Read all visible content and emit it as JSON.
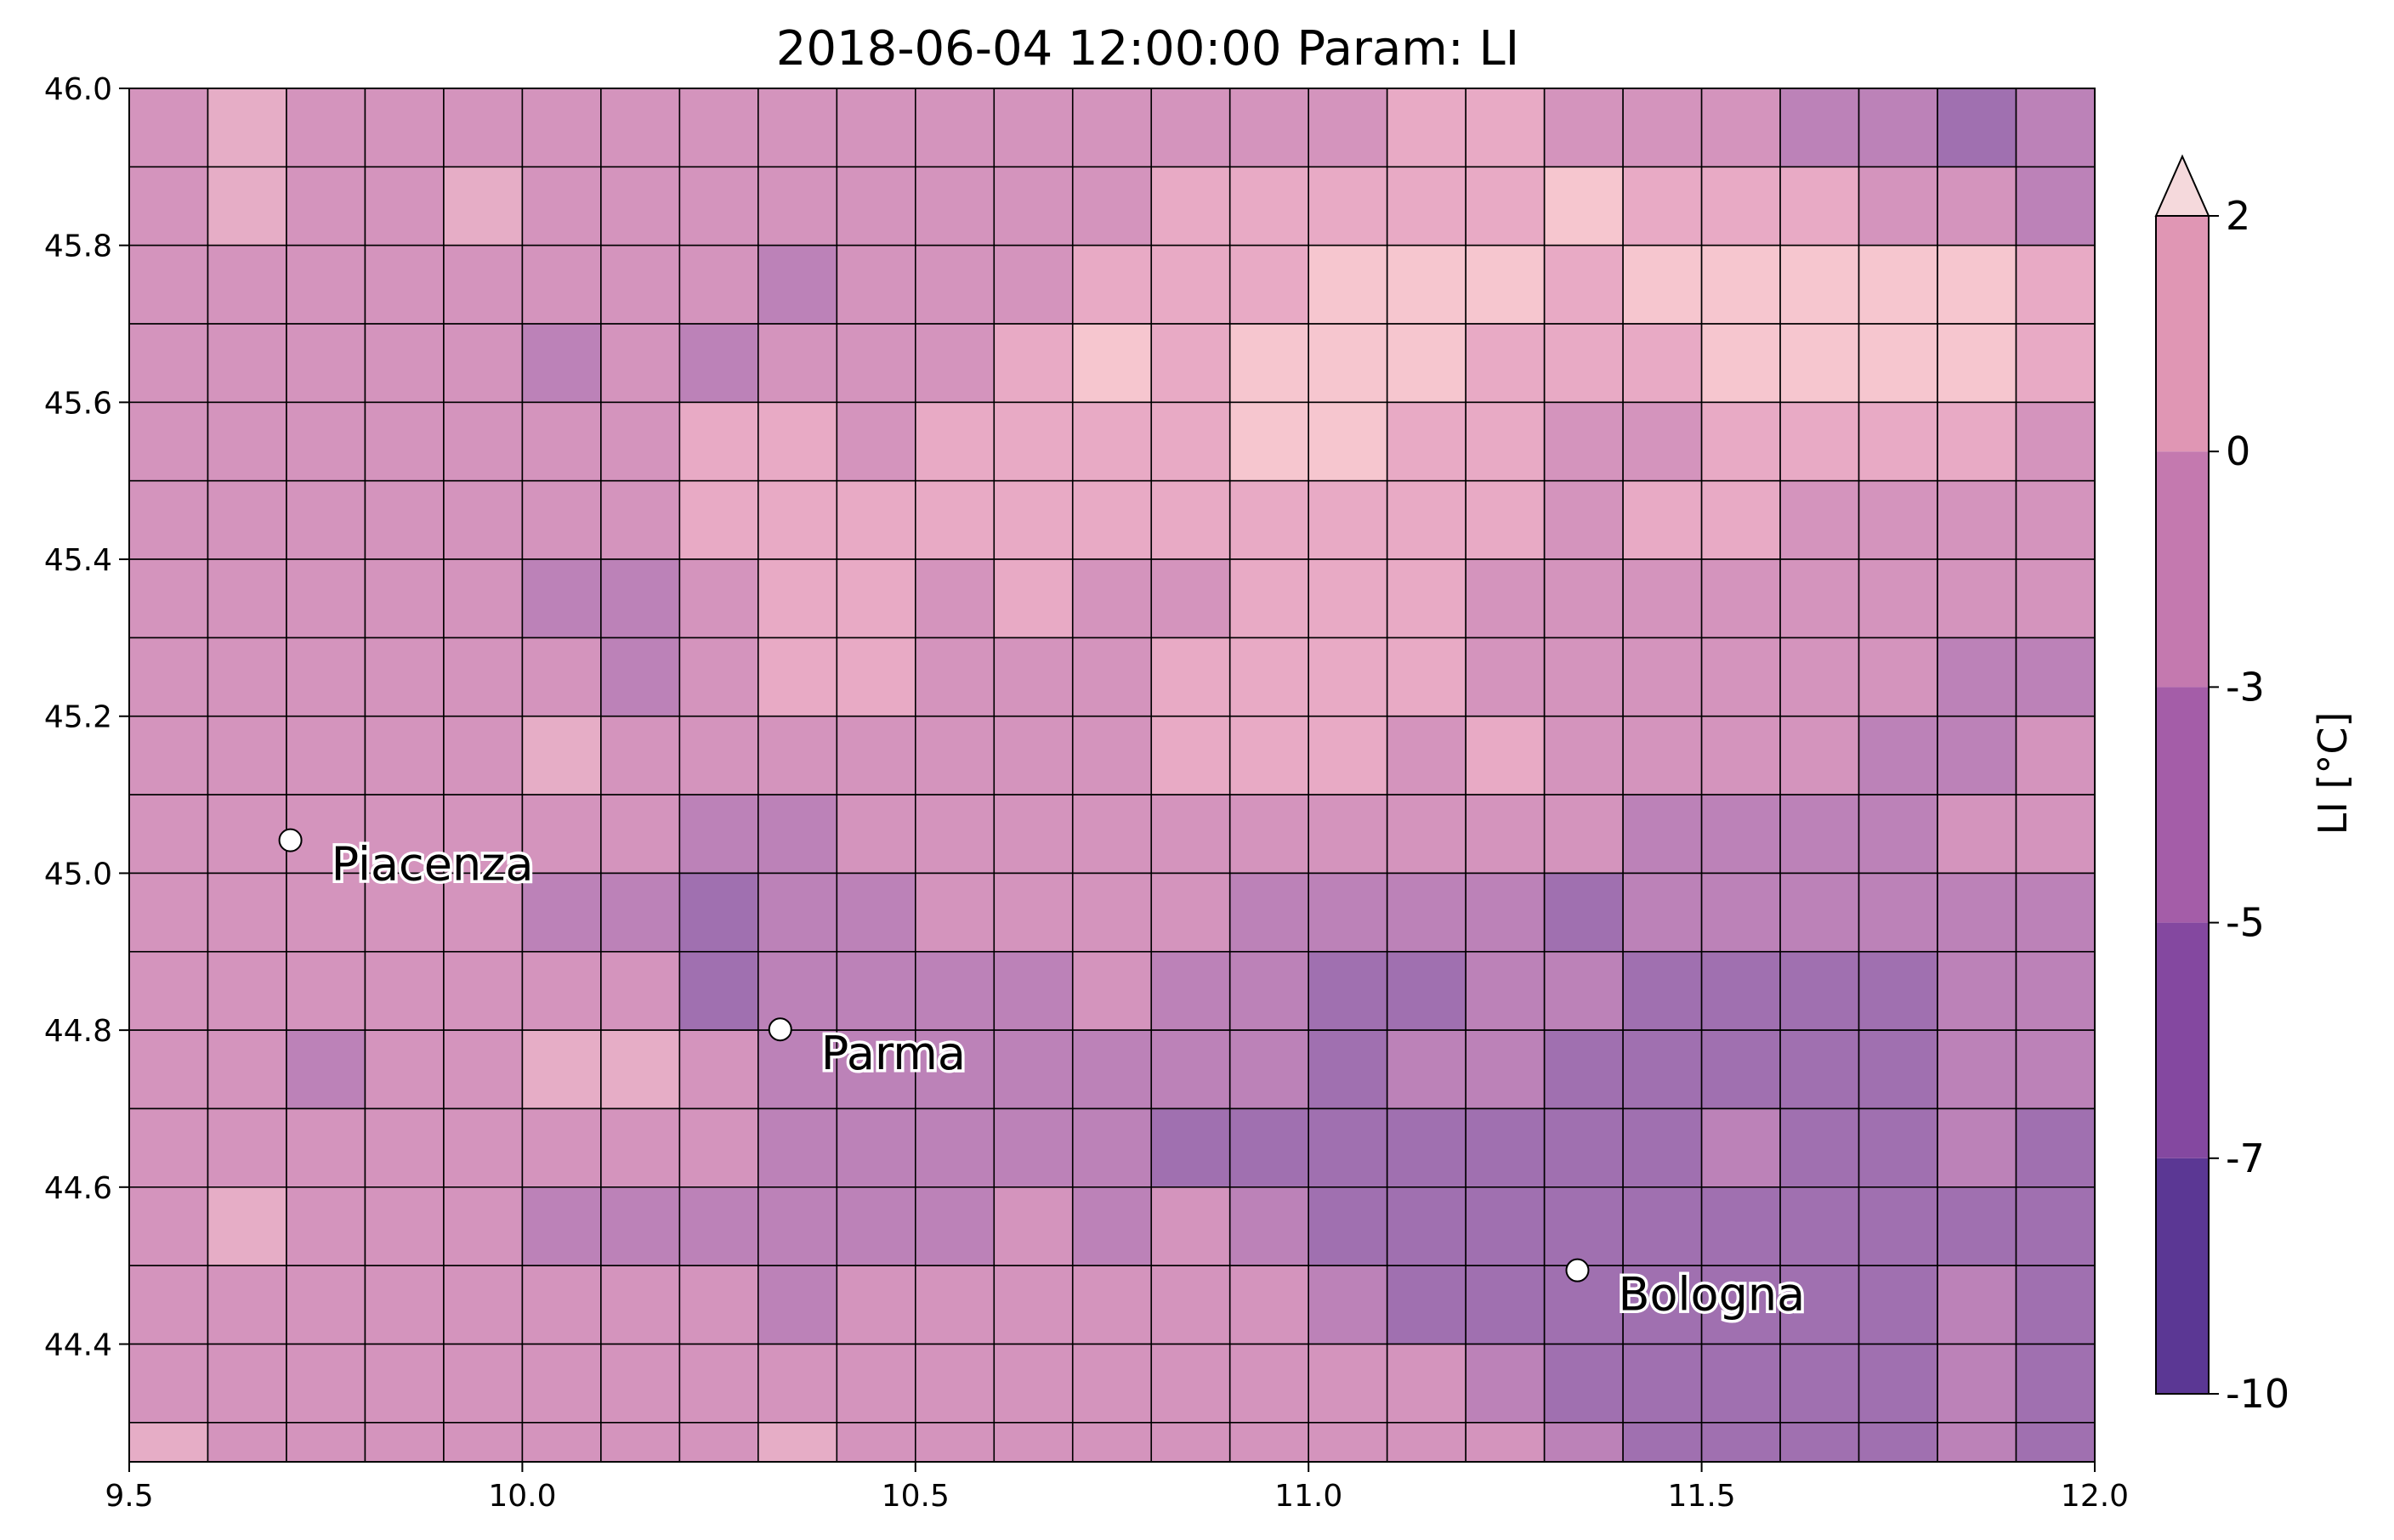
{
  "chart_data": {
    "type": "heatmap",
    "title": "2018-06-04 12:00:00 Param: LI",
    "xlim": [
      9.5,
      12.0
    ],
    "ylim": [
      44.25,
      46.0
    ],
    "x_ticks": [
      9.5,
      10.0,
      10.5,
      11.0,
      11.5,
      12.0
    ],
    "x_tick_labels": [
      "9.5",
      "10.0",
      "10.5",
      "11.0",
      "11.5",
      "12.0"
    ],
    "y_ticks": [
      44.4,
      44.6,
      44.8,
      45.0,
      45.2,
      45.4,
      45.6,
      45.8,
      46.0
    ],
    "y_tick_labels": [
      "44.4",
      "44.6",
      "44.8",
      "45.0",
      "45.2",
      "45.4",
      "45.6",
      "45.8",
      "46.0"
    ],
    "grid_x_edges": [
      9.5,
      9.6,
      9.7,
      9.8,
      9.9,
      10.0,
      10.1,
      10.2,
      10.3,
      10.4,
      10.5,
      10.6,
      10.7,
      10.8,
      10.9,
      11.0,
      11.1,
      11.2,
      11.3,
      11.4,
      11.5,
      11.6,
      11.7,
      11.8,
      11.9,
      12.0
    ],
    "grid_y_edges_top_to_bottom": [
      46.0,
      45.9,
      45.8,
      45.7,
      45.6,
      45.5,
      45.4,
      45.3,
      45.2,
      45.1,
      45.0,
      44.9,
      44.8,
      44.7,
      44.6,
      44.5,
      44.4,
      44.3,
      44.25
    ],
    "value_units": "LI [°C], colour class index (0 = -10..-7, 1 = -7..-5, 2 = -5..-3, 3 = -3..0, 4 = 0..2, 5 = >2)",
    "rows_top_to_bottom": [
      [
        2.6,
        3.4,
        2.6,
        2.6,
        2.6,
        2.6,
        2.6,
        2.6,
        2.6,
        2.6,
        2.6,
        2.6,
        2.6,
        2.6,
        2.6,
        2.6,
        3.0,
        3.0,
        2.6,
        2.6,
        2.6,
        2.0,
        2.0,
        1.4,
        2.0
      ],
      [
        2.6,
        3.4,
        2.6,
        2.6,
        3.4,
        2.6,
        2.6,
        2.6,
        2.6,
        2.6,
        2.6,
        2.6,
        2.6,
        3.0,
        3.0,
        3.0,
        3.0,
        3.0,
        4.5,
        3.0,
        3.0,
        3.0,
        2.6,
        2.6,
        2.0
      ],
      [
        2.6,
        2.6,
        2.6,
        2.6,
        2.6,
        2.6,
        2.6,
        2.6,
        2.0,
        2.6,
        2.6,
        2.6,
        3.0,
        3.0,
        3.0,
        4.5,
        4.5,
        4.5,
        3.0,
        4.5,
        4.5,
        4.5,
        4.5,
        4.5,
        3.0
      ],
      [
        2.6,
        2.6,
        2.6,
        2.6,
        2.6,
        2.0,
        2.6,
        2.0,
        2.6,
        2.6,
        2.6,
        3.0,
        4.5,
        3.0,
        4.5,
        4.5,
        4.5,
        3.0,
        3.0,
        3.0,
        4.5,
        4.5,
        4.5,
        4.5,
        3.0
      ],
      [
        2.6,
        2.6,
        2.6,
        2.6,
        2.6,
        2.6,
        2.6,
        3.0,
        3.0,
        2.6,
        3.0,
        3.0,
        3.0,
        3.0,
        4.5,
        4.5,
        3.0,
        3.0,
        2.6,
        2.6,
        3.0,
        3.0,
        3.0,
        3.0,
        2.6
      ],
      [
        2.6,
        2.6,
        2.6,
        2.6,
        2.6,
        2.6,
        2.6,
        3.0,
        3.0,
        3.0,
        3.0,
        3.0,
        3.0,
        3.0,
        3.0,
        3.0,
        3.0,
        3.0,
        2.6,
        3.0,
        3.0,
        2.6,
        2.6,
        2.6,
        2.6
      ],
      [
        2.6,
        2.6,
        2.6,
        2.6,
        2.6,
        2.0,
        2.0,
        2.6,
        3.0,
        3.0,
        2.6,
        3.0,
        2.6,
        2.6,
        3.0,
        3.0,
        3.0,
        2.6,
        2.6,
        2.6,
        2.6,
        2.6,
        2.6,
        2.6,
        2.6
      ],
      [
        2.6,
        2.6,
        2.6,
        2.6,
        2.6,
        2.6,
        2.0,
        2.6,
        3.0,
        3.0,
        2.6,
        2.6,
        2.6,
        3.0,
        3.0,
        3.0,
        3.0,
        2.6,
        2.6,
        2.6,
        2.6,
        2.6,
        2.6,
        2.0,
        2.0
      ],
      [
        2.6,
        2.6,
        2.6,
        2.6,
        2.6,
        3.4,
        2.6,
        2.6,
        2.6,
        2.6,
        2.6,
        2.6,
        2.6,
        3.0,
        3.0,
        3.0,
        2.6,
        3.0,
        2.6,
        2.6,
        2.6,
        2.6,
        2.0,
        2.0,
        2.6
      ],
      [
        2.6,
        2.6,
        2.6,
        2.6,
        2.6,
        2.6,
        2.6,
        2.0,
        2.0,
        2.6,
        2.6,
        2.6,
        2.6,
        2.6,
        2.6,
        2.6,
        2.6,
        2.6,
        2.6,
        2.0,
        2.0,
        2.0,
        2.0,
        2.6,
        2.6
      ],
      [
        2.6,
        2.6,
        2.6,
        2.6,
        2.6,
        2.0,
        2.0,
        1.4,
        2.0,
        2.0,
        2.6,
        2.6,
        2.6,
        2.6,
        2.0,
        2.0,
        2.0,
        2.0,
        1.4,
        2.0,
        2.0,
        2.0,
        2.0,
        2.0,
        2.0
      ],
      [
        2.6,
        2.6,
        2.6,
        2.6,
        2.6,
        2.6,
        2.6,
        1.4,
        2.0,
        2.0,
        2.0,
        2.0,
        2.6,
        2.0,
        2.0,
        1.4,
        1.4,
        2.0,
        2.0,
        1.4,
        1.4,
        1.4,
        1.4,
        2.0,
        2.0
      ],
      [
        2.6,
        2.6,
        2.0,
        2.6,
        2.6,
        3.4,
        3.4,
        2.6,
        2.0,
        2.0,
        2.0,
        2.0,
        2.0,
        2.0,
        2.0,
        1.4,
        2.0,
        2.0,
        1.4,
        1.4,
        1.4,
        1.4,
        1.4,
        2.0,
        2.0
      ],
      [
        2.6,
        2.6,
        2.6,
        2.6,
        2.6,
        2.6,
        2.6,
        2.6,
        2.0,
        2.0,
        2.0,
        2.0,
        2.0,
        1.4,
        1.4,
        1.4,
        1.4,
        1.4,
        1.4,
        1.4,
        2.0,
        1.4,
        1.4,
        2.0,
        1.4
      ],
      [
        2.6,
        3.4,
        2.6,
        2.6,
        2.6,
        2.0,
        2.0,
        2.0,
        2.0,
        2.0,
        2.0,
        2.6,
        2.0,
        2.6,
        2.0,
        1.4,
        1.4,
        1.4,
        1.4,
        1.4,
        1.4,
        1.4,
        1.4,
        1.4,
        1.4
      ],
      [
        2.6,
        2.6,
        2.6,
        2.6,
        2.6,
        2.6,
        2.6,
        2.6,
        2.0,
        2.6,
        2.6,
        2.6,
        2.6,
        2.6,
        2.6,
        2.0,
        1.4,
        1.4,
        1.4,
        1.4,
        1.4,
        1.4,
        1.4,
        2.0,
        1.4
      ],
      [
        2.6,
        2.6,
        2.6,
        2.6,
        2.6,
        2.6,
        2.6,
        2.6,
        2.6,
        2.6,
        2.6,
        2.6,
        2.6,
        2.6,
        2.6,
        2.6,
        2.6,
        2.0,
        1.4,
        1.4,
        1.4,
        1.4,
        1.4,
        2.0,
        1.4
      ],
      [
        3.4,
        2.6,
        2.6,
        2.6,
        2.6,
        2.6,
        2.6,
        2.6,
        3.4,
        2.6,
        2.6,
        2.6,
        2.6,
        2.6,
        2.6,
        2.6,
        2.6,
        2.6,
        2.0,
        1.4,
        1.4,
        1.4,
        1.4,
        2.0,
        1.4
      ]
    ],
    "cities": [
      {
        "name": "Piacenza",
        "lon": 9.705,
        "lat": 45.042
      },
      {
        "name": "Parma",
        "lon": 10.328,
        "lat": 44.801
      },
      {
        "name": "Bologna",
        "lon": 11.342,
        "lat": 44.494
      }
    ],
    "colorbar": {
      "label": "LI [°C]",
      "ticks": [
        -10,
        -7,
        -5,
        -3,
        0,
        2
      ],
      "tick_labels": [
        "-10",
        "-7",
        "-5",
        "-3",
        "0",
        "2"
      ],
      "colors": [
        "#5b3794",
        "#8448a0",
        "#a45da8",
        "#c479af",
        "#e096b4",
        "#f5d9dc"
      ],
      "extend": "max"
    }
  }
}
